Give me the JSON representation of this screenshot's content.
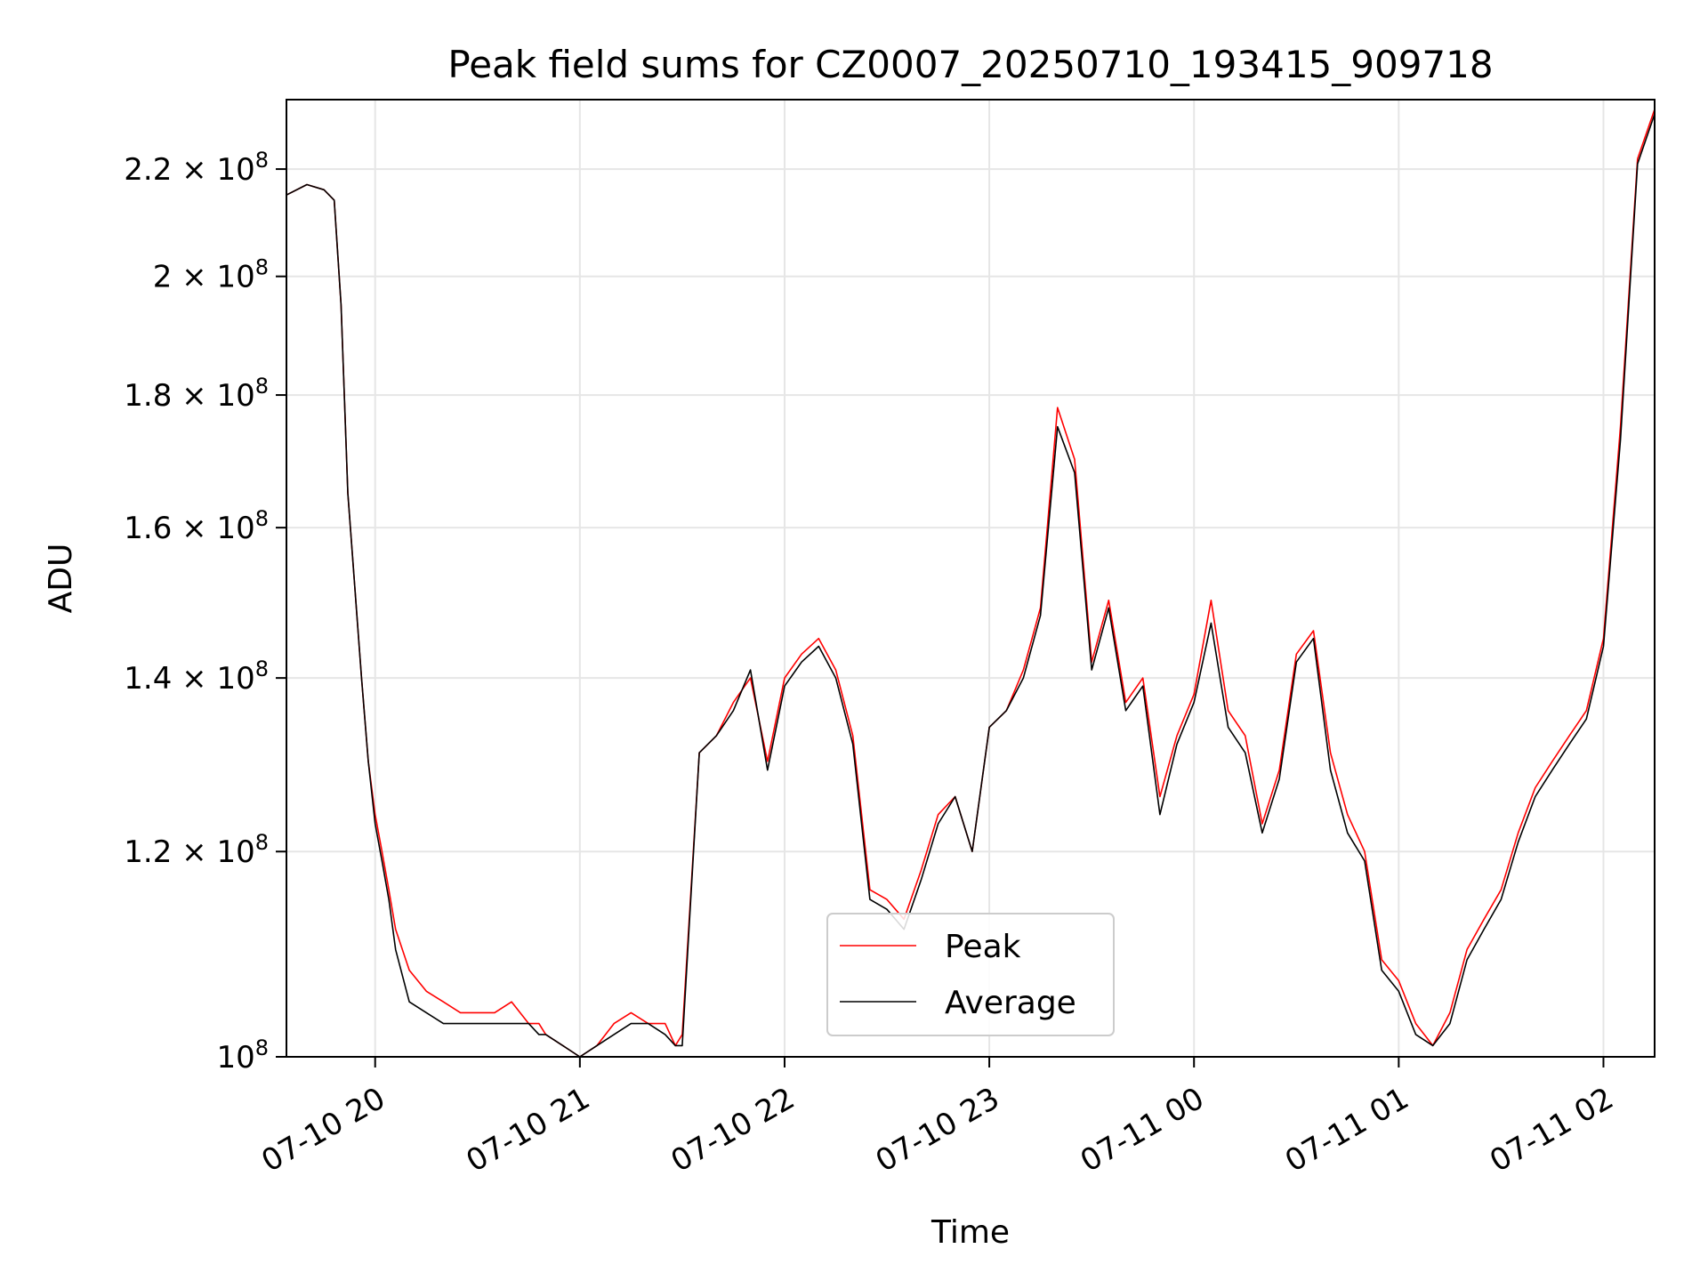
{
  "chart_data": {
    "type": "line",
    "title": "Peak field sums for CZ0007_20250710_193415_909718",
    "xlabel": "Time",
    "ylabel": "ADU",
    "y_scale": "log",
    "ylim": [
      100000000,
      234000000
    ],
    "xlim": [
      "2025-07-10 19:34",
      "2025-07-11 02:15"
    ],
    "grid": true,
    "legend_position": "lower-center",
    "x_ticks": [
      {
        "label": "07-10 20",
        "time": "2025-07-10 20:00"
      },
      {
        "label": "07-10 21",
        "time": "2025-07-10 21:00"
      },
      {
        "label": "07-10 22",
        "time": "2025-07-10 22:00"
      },
      {
        "label": "07-10 23",
        "time": "2025-07-10 23:00"
      },
      {
        "label": "07-11 00",
        "time": "2025-07-11 00:00"
      },
      {
        "label": "07-11 01",
        "time": "2025-07-11 01:00"
      },
      {
        "label": "07-11 02",
        "time": "2025-07-11 02:00"
      }
    ],
    "y_ticks": [
      {
        "mantissa": "10",
        "exponent": "8",
        "value": 100000000
      },
      {
        "mantissa": "1.2 × 10",
        "exponent": "8",
        "value": 120000000
      },
      {
        "mantissa": "1.4 × 10",
        "exponent": "8",
        "value": 140000000
      },
      {
        "mantissa": "1.6 × 10",
        "exponent": "8",
        "value": 160000000
      },
      {
        "mantissa": "1.8 × 10",
        "exponent": "8",
        "value": 180000000
      },
      {
        "mantissa": "2 × 10",
        "exponent": "8",
        "value": 200000000
      },
      {
        "mantissa": "2.2 × 10",
        "exponent": "8",
        "value": 220000000
      }
    ],
    "x": [
      "2025-07-10 19:34",
      "2025-07-10 19:40",
      "2025-07-10 19:45",
      "2025-07-10 19:48",
      "2025-07-10 19:50",
      "2025-07-10 19:52",
      "2025-07-10 19:54",
      "2025-07-10 19:56",
      "2025-07-10 19:58",
      "2025-07-10 20:00",
      "2025-07-10 20:02",
      "2025-07-10 20:04",
      "2025-07-10 20:06",
      "2025-07-10 20:10",
      "2025-07-10 20:15",
      "2025-07-10 20:20",
      "2025-07-10 20:25",
      "2025-07-10 20:30",
      "2025-07-10 20:35",
      "2025-07-10 20:40",
      "2025-07-10 20:45",
      "2025-07-10 20:48",
      "2025-07-10 20:50",
      "2025-07-10 20:55",
      "2025-07-10 21:00",
      "2025-07-10 21:05",
      "2025-07-10 21:10",
      "2025-07-10 21:15",
      "2025-07-10 21:20",
      "2025-07-10 21:25",
      "2025-07-10 21:28",
      "2025-07-10 21:30",
      "2025-07-10 21:35",
      "2025-07-10 21:40",
      "2025-07-10 21:45",
      "2025-07-10 21:50",
      "2025-07-10 21:55",
      "2025-07-10 22:00",
      "2025-07-10 22:05",
      "2025-07-10 22:10",
      "2025-07-10 22:15",
      "2025-07-10 22:20",
      "2025-07-10 22:25",
      "2025-07-10 22:30",
      "2025-07-10 22:35",
      "2025-07-10 22:40",
      "2025-07-10 22:45",
      "2025-07-10 22:50",
      "2025-07-10 22:55",
      "2025-07-10 23:00",
      "2025-07-10 23:05",
      "2025-07-10 23:10",
      "2025-07-10 23:15",
      "2025-07-10 23:20",
      "2025-07-10 23:25",
      "2025-07-10 23:30",
      "2025-07-10 23:35",
      "2025-07-10 23:40",
      "2025-07-10 23:45",
      "2025-07-10 23:50",
      "2025-07-10 23:55",
      "2025-07-11 00:00",
      "2025-07-11 00:05",
      "2025-07-11 00:10",
      "2025-07-11 00:15",
      "2025-07-11 00:20",
      "2025-07-11 00:25",
      "2025-07-11 00:30",
      "2025-07-11 00:35",
      "2025-07-11 00:40",
      "2025-07-11 00:45",
      "2025-07-11 00:50",
      "2025-07-11 00:55",
      "2025-07-11 01:00",
      "2025-07-11 01:05",
      "2025-07-11 01:10",
      "2025-07-11 01:15",
      "2025-07-11 01:20",
      "2025-07-11 01:25",
      "2025-07-11 01:30",
      "2025-07-11 01:35",
      "2025-07-11 01:40",
      "2025-07-11 01:45",
      "2025-07-11 01:50",
      "2025-07-11 01:55",
      "2025-07-11 02:00",
      "2025-07-11 02:05",
      "2025-07-11 02:10",
      "2025-07-11 02:15"
    ],
    "series": [
      {
        "name": "Peak",
        "color": "#ff0000",
        "values": [
          215,
          217,
          216,
          214,
          195,
          165,
          152,
          140,
          130,
          124,
          120,
          116,
          112,
          108,
          106,
          105,
          104,
          104,
          104,
          105,
          103,
          103,
          102,
          101,
          100,
          101,
          103,
          104,
          103,
          103,
          101,
          102,
          131,
          133,
          137,
          140,
          130,
          140,
          143,
          145,
          141,
          133,
          116,
          115,
          113,
          118,
          124,
          126,
          120,
          134,
          136,
          141,
          149,
          178,
          170,
          142,
          150,
          137,
          140,
          126,
          133,
          138,
          150,
          136,
          133,
          123,
          129,
          143,
          146,
          131,
          124,
          120,
          109,
          107,
          103,
          101,
          104,
          110,
          113,
          116,
          122,
          127,
          130,
          133,
          136,
          145,
          175,
          222,
          232
        ]
      },
      {
        "name": "Average",
        "color": "#000000",
        "values": [
          215,
          217,
          216,
          214,
          195,
          165,
          152,
          140,
          130,
          123,
          119,
          115,
          110,
          105,
          104,
          103,
          103,
          103,
          103,
          103,
          103,
          102,
          102,
          101,
          100,
          101,
          102,
          103,
          103,
          102,
          101,
          101,
          131,
          133,
          136,
          141,
          129,
          139,
          142,
          144,
          140,
          132,
          115,
          114,
          112,
          117,
          123,
          126,
          120,
          134,
          136,
          140,
          148,
          175,
          168,
          141,
          149,
          136,
          139,
          124,
          132,
          137,
          147,
          134,
          131,
          122,
          128,
          142,
          145,
          129,
          122,
          119,
          108,
          106,
          102,
          101,
          103,
          109,
          112,
          115,
          121,
          126,
          129,
          132,
          135,
          144,
          173,
          221,
          231
        ]
      }
    ]
  }
}
